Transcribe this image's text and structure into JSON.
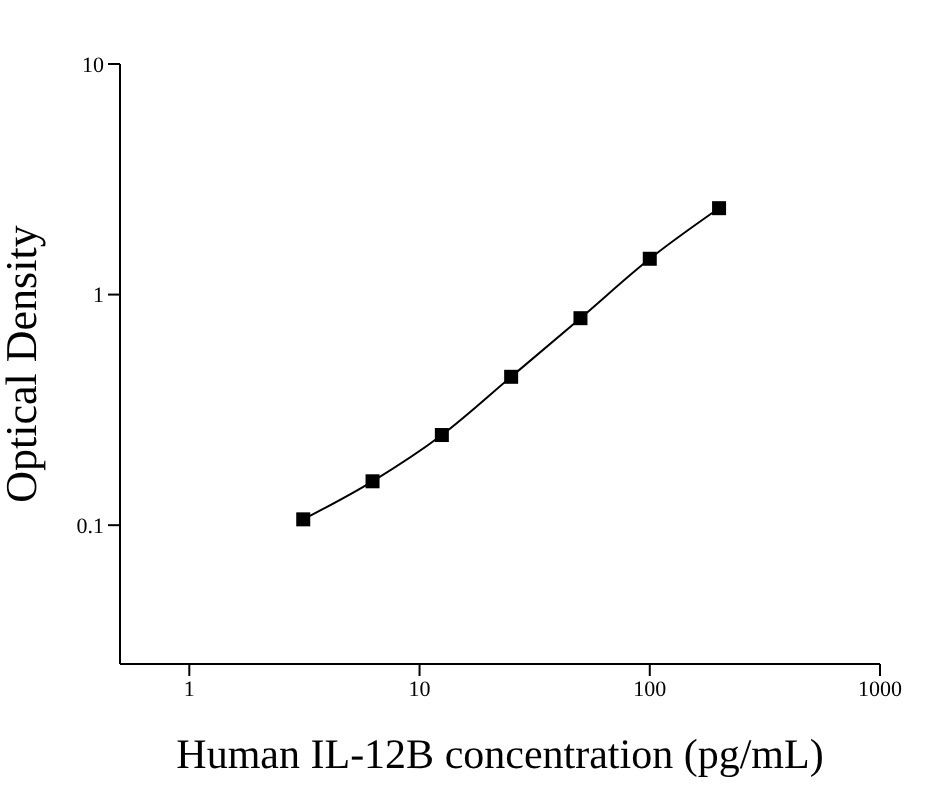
{
  "chart_data": {
    "type": "line",
    "xlabel": "Human IL-12B concentration (pg/mL)",
    "ylabel": "Optical Density",
    "x": [
      3.125,
      6.25,
      12.5,
      25,
      50,
      100,
      200
    ],
    "series": [
      {
        "color": "#000000",
        "values": [
          0.106,
          0.155,
          0.246,
          0.44,
          0.79,
          1.43,
          2.37
        ]
      }
    ],
    "log": "xy",
    "xlim": [
      0.5,
      1000
    ],
    "ylim": [
      0.025,
      10
    ],
    "xticks": [
      1,
      10,
      100,
      1000
    ],
    "yticks": [
      0.1,
      1,
      10
    ],
    "marker": "square",
    "line_style": "solid",
    "grid": false
  }
}
